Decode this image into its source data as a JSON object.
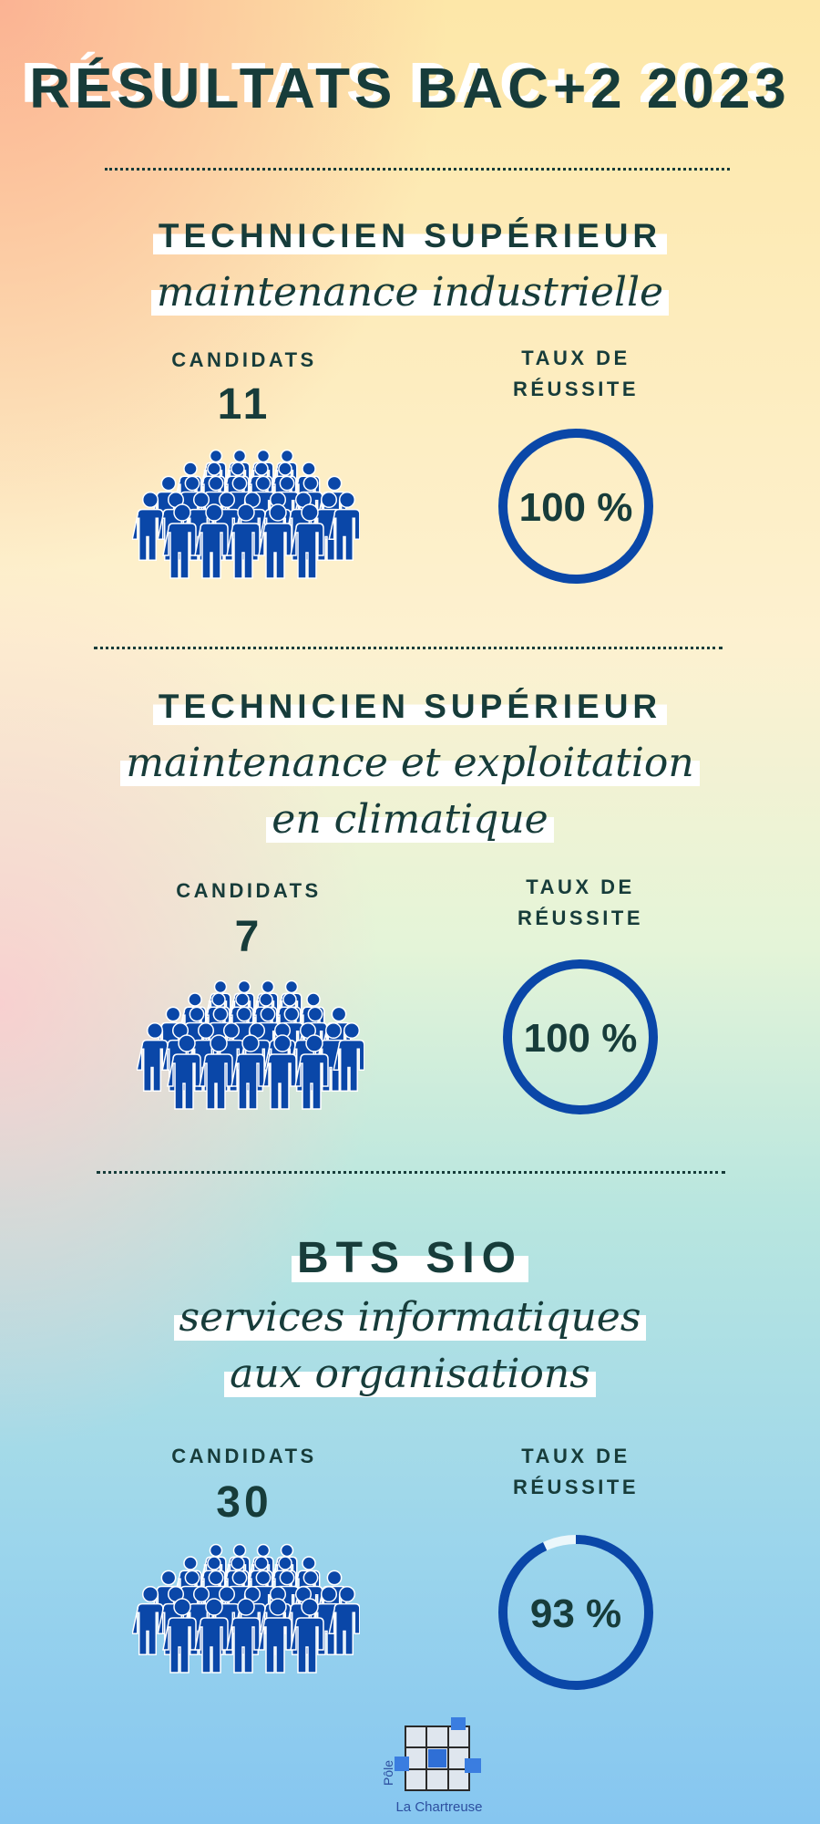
{
  "title": "RÉSULTATS BAC+2 2023",
  "colors": {
    "text": "#173c3a",
    "accent": "#0a47a8"
  },
  "sections": [
    {
      "heading": "TECHNICIEN SUPÉRIEUR",
      "subtitle_lines": [
        "maintenance industrielle"
      ],
      "candidates_label": "CANDIDATS",
      "candidates": "11",
      "rate_label_lines": [
        "TAUX DE",
        "RÉUSSITE"
      ],
      "rate_text": "100 %",
      "rate": 100,
      "icon": "people-group-icon"
    },
    {
      "heading": "TECHNICIEN SUPÉRIEUR",
      "subtitle_lines": [
        "maintenance et exploitation",
        "en climatique"
      ],
      "candidates_label": "CANDIDATS",
      "candidates": "7",
      "rate_label_lines": [
        "TAUX DE",
        "RÉUSSITE"
      ],
      "rate_text": "100 %",
      "rate": 100,
      "icon": "people-group-icon"
    },
    {
      "heading": "BTS SIO",
      "subtitle_lines": [
        "services informatiques",
        "aux organisations"
      ],
      "candidates_label": "CANDIDATS",
      "candidates": "30",
      "rate_label_lines": [
        "TAUX DE",
        "RÉUSSITE"
      ],
      "rate_text": "93 %",
      "rate": 93,
      "icon": "people-group-icon"
    }
  ],
  "logo": {
    "line1": "Pôle",
    "line2": "La Chartreuse"
  }
}
